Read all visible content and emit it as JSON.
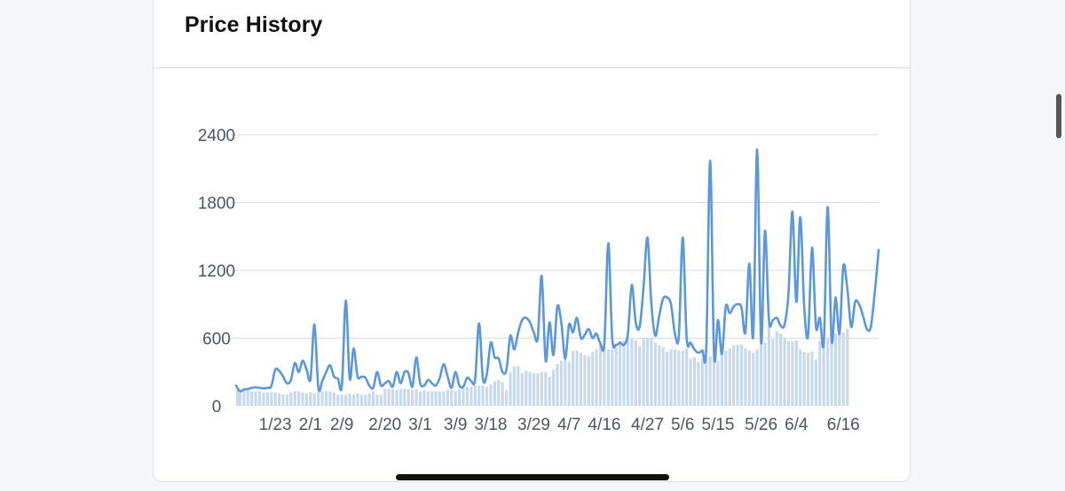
{
  "card": {
    "title": "Price History"
  },
  "chart_data": {
    "type": "line",
    "ylim": [
      0,
      2400
    ],
    "yticks": [
      0,
      600,
      1200,
      1800,
      2400
    ],
    "x_tick_labels": [
      "1/23",
      "2/1",
      "2/9",
      "2/20",
      "3/1",
      "3/9",
      "3/18",
      "3/29",
      "4/7",
      "4/16",
      "4/27",
      "5/6",
      "5/15",
      "5/26",
      "6/4",
      "6/16"
    ],
    "x_tick_index": [
      10,
      19,
      27,
      38,
      47,
      56,
      65,
      76,
      85,
      94,
      105,
      114,
      123,
      134,
      143,
      155
    ],
    "series": [
      {
        "kind": "line",
        "color": "#5b97d9",
        "values": [
          180,
          130,
          145,
          150,
          160,
          165,
          160,
          155,
          160,
          175,
          320,
          310,
          260,
          200,
          230,
          380,
          300,
          400,
          320,
          240,
          720,
          160,
          220,
          300,
          360,
          260,
          240,
          180,
          930,
          240,
          510,
          260,
          260,
          250,
          180,
          160,
          300,
          180,
          200,
          220,
          170,
          300,
          200,
          300,
          290,
          170,
          430,
          200,
          180,
          230,
          200,
          180,
          250,
          370,
          260,
          160,
          300,
          180,
          170,
          250,
          220,
          230,
          730,
          240,
          280,
          560,
          430,
          420,
          300,
          320,
          620,
          500,
          650,
          760,
          780,
          740,
          650,
          600,
          1150,
          400,
          740,
          450,
          880,
          740,
          420,
          720,
          650,
          780,
          600,
          630,
          680,
          600,
          640,
          550,
          560,
          1440,
          600,
          540,
          560,
          540,
          640,
          1070,
          740,
          700,
          1050,
          1490,
          900,
          620,
          800,
          950,
          960,
          900,
          640,
          620,
          1490,
          600,
          560,
          500,
          470,
          490,
          510,
          2170,
          450,
          760,
          460,
          880,
          820,
          880,
          900,
          870,
          650,
          1260,
          620,
          2270,
          560,
          1550,
          760,
          760,
          780,
          710,
          720,
          1000,
          1720,
          920,
          1670,
          880,
          620,
          1400,
          700,
          780,
          560,
          1760,
          580,
          960,
          640,
          1240,
          1040,
          700,
          920,
          900,
          800,
          680,
          700,
          1000,
          1380
        ],
        "first_date": "1/13"
      },
      {
        "kind": "bar",
        "color": "#c9d9ec",
        "values": [
          150,
          140,
          130,
          140,
          130,
          130,
          130,
          120,
          120,
          120,
          120,
          110,
          100,
          100,
          120,
          130,
          130,
          120,
          110,
          120,
          110,
          120,
          130,
          130,
          130,
          120,
          100,
          100,
          100,
          110,
          100,
          110,
          100,
          100,
          110,
          130,
          100,
          100,
          150,
          150,
          150,
          140,
          150,
          150,
          150,
          140,
          150,
          130,
          140,
          130,
          130,
          130,
          130,
          130,
          140,
          140,
          130,
          150,
          160,
          170,
          170,
          180,
          180,
          180,
          170,
          190,
          220,
          230,
          210,
          140,
          300,
          350,
          350,
          290,
          310,
          300,
          290,
          290,
          300,
          300,
          260,
          320,
          370,
          400,
          420,
          390,
          490,
          490,
          470,
          450,
          440,
          480,
          500,
          560,
          520,
          500,
          500,
          520,
          560,
          580,
          620,
          600,
          580,
          530,
          600,
          600,
          600,
          560,
          540,
          520,
          480,
          500,
          500,
          490,
          490,
          510,
          420,
          430,
          390,
          420,
          420,
          440,
          430,
          400,
          470,
          490,
          510,
          540,
          540,
          540,
          510,
          490,
          470,
          500,
          540,
          560,
          720,
          590,
          660,
          640,
          600,
          570,
          570,
          580,
          500,
          480,
          470,
          480,
          410,
          570,
          580,
          600,
          600,
          640,
          640,
          650,
          680
        ]
      }
    ]
  }
}
